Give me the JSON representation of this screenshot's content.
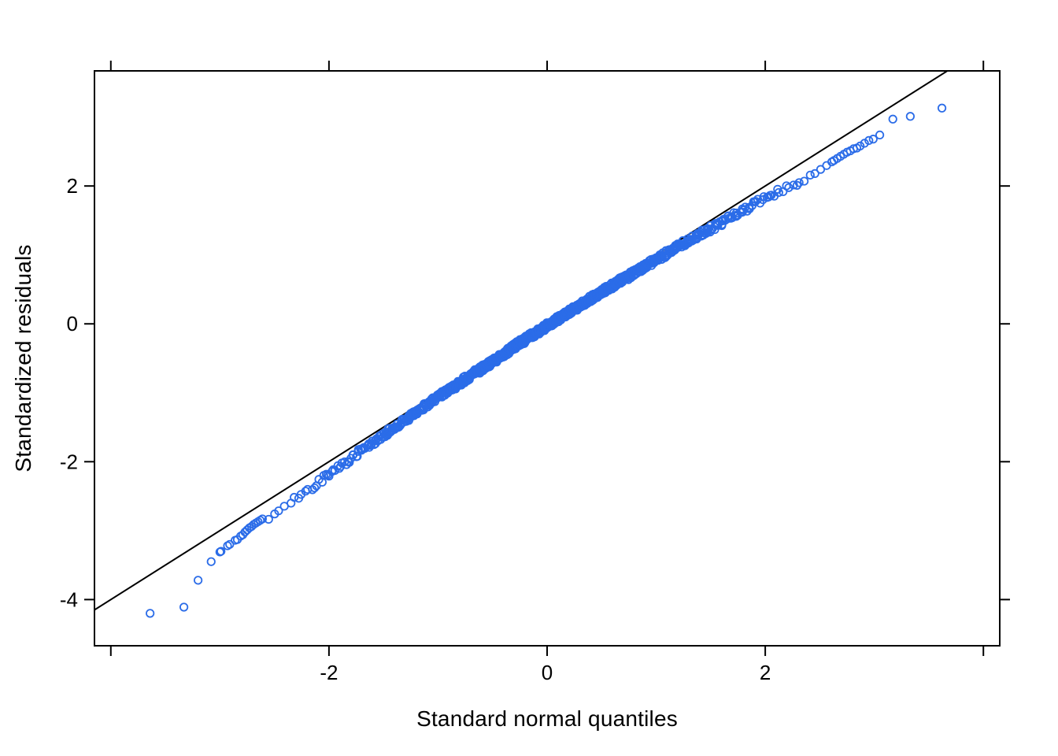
{
  "chart_data": {
    "type": "scatter",
    "subtype": "qq-plot",
    "title": "",
    "xlabel": "Standard normal quantiles",
    "ylabel": "Standardized residuals",
    "xlim": [
      -4.15,
      4.15
    ],
    "ylim": [
      -4.67,
      3.67
    ],
    "x_ticks": [
      -4,
      -2,
      0,
      2,
      4
    ],
    "x_tick_labels": [
      "",
      "-2",
      "0",
      "2",
      ""
    ],
    "y_ticks": [
      -4,
      -2,
      0,
      2
    ],
    "y_tick_labels": [
      "-4",
      "-2",
      "0",
      "2"
    ],
    "grid": false,
    "legend": null,
    "background": "#ffffff",
    "axis_color": "#000000",
    "point_color": "#2b6ce8",
    "reference_line": {
      "slope": 1,
      "intercept": 0,
      "color": "#000000"
    },
    "band": {
      "n_points": 1000,
      "p": [
        0.005,
        0.01,
        0.015,
        0.02,
        0.03,
        0.04,
        0.05,
        0.065,
        0.08,
        0.1,
        0.125,
        0.15,
        0.175,
        0.2,
        0.25,
        0.3,
        0.35,
        0.4,
        0.45,
        0.5,
        0.55,
        0.6,
        0.65,
        0.7,
        0.75,
        0.8,
        0.825,
        0.85,
        0.875,
        0.9,
        0.92,
        0.935,
        0.95,
        0.96,
        0.97,
        0.98,
        0.985,
        0.99,
        0.995
      ],
      "x": [
        -2.58,
        -2.33,
        -2.17,
        -2.05,
        -1.88,
        -1.75,
        -1.64,
        -1.51,
        -1.41,
        -1.28,
        -1.15,
        -1.04,
        -0.93,
        -0.84,
        -0.67,
        -0.52,
        -0.39,
        -0.25,
        -0.13,
        0,
        0.13,
        0.25,
        0.39,
        0.52,
        0.67,
        0.84,
        0.93,
        1.04,
        1.15,
        1.28,
        1.41,
        1.51,
        1.64,
        1.75,
        1.88,
        2.05,
        2.17,
        2.33,
        2.58
      ],
      "y": [
        -2.86,
        -2.57,
        -2.38,
        -2.24,
        -2.04,
        -1.9,
        -1.77,
        -1.63,
        -1.52,
        -1.37,
        -1.23,
        -1.11,
        -0.99,
        -0.9,
        -0.72,
        -0.56,
        -0.43,
        -0.28,
        -0.16,
        -0.03,
        0.1,
        0.22,
        0.35,
        0.48,
        0.62,
        0.78,
        0.87,
        0.97,
        1.07,
        1.19,
        1.3,
        1.39,
        1.51,
        1.6,
        1.72,
        1.86,
        1.96,
        2.09,
        2.3
      ]
    },
    "tail_points_left": {
      "x": [
        -3.64,
        -3.33,
        -3.2,
        -3.08,
        -3.0,
        -2.99,
        -2.93,
        -2.91,
        -2.86,
        -2.84,
        -2.81,
        -2.79,
        -2.77,
        -2.75,
        -2.73,
        -2.71,
        -2.69,
        -2.67,
        -2.65,
        -2.63,
        -2.61
      ],
      "y": [
        -4.2,
        -4.11,
        -3.72,
        -3.45,
        -3.31,
        -3.3,
        -3.22,
        -3.2,
        -3.14,
        -3.13,
        -3.08,
        -3.06,
        -3.02,
        -2.99,
        -2.96,
        -2.94,
        -2.91,
        -2.89,
        -2.87,
        -2.85,
        -2.83
      ]
    },
    "tail_points_right": {
      "x": [
        2.61,
        2.63,
        2.66,
        2.69,
        2.72,
        2.75,
        2.78,
        2.81,
        2.84,
        2.87,
        2.91,
        2.95,
        2.99,
        3.05,
        3.17,
        3.33,
        3.62
      ],
      "y": [
        2.35,
        2.37,
        2.4,
        2.43,
        2.46,
        2.49,
        2.51,
        2.54,
        2.55,
        2.58,
        2.62,
        2.66,
        2.68,
        2.74,
        2.97,
        3.01,
        3.13
      ]
    }
  }
}
